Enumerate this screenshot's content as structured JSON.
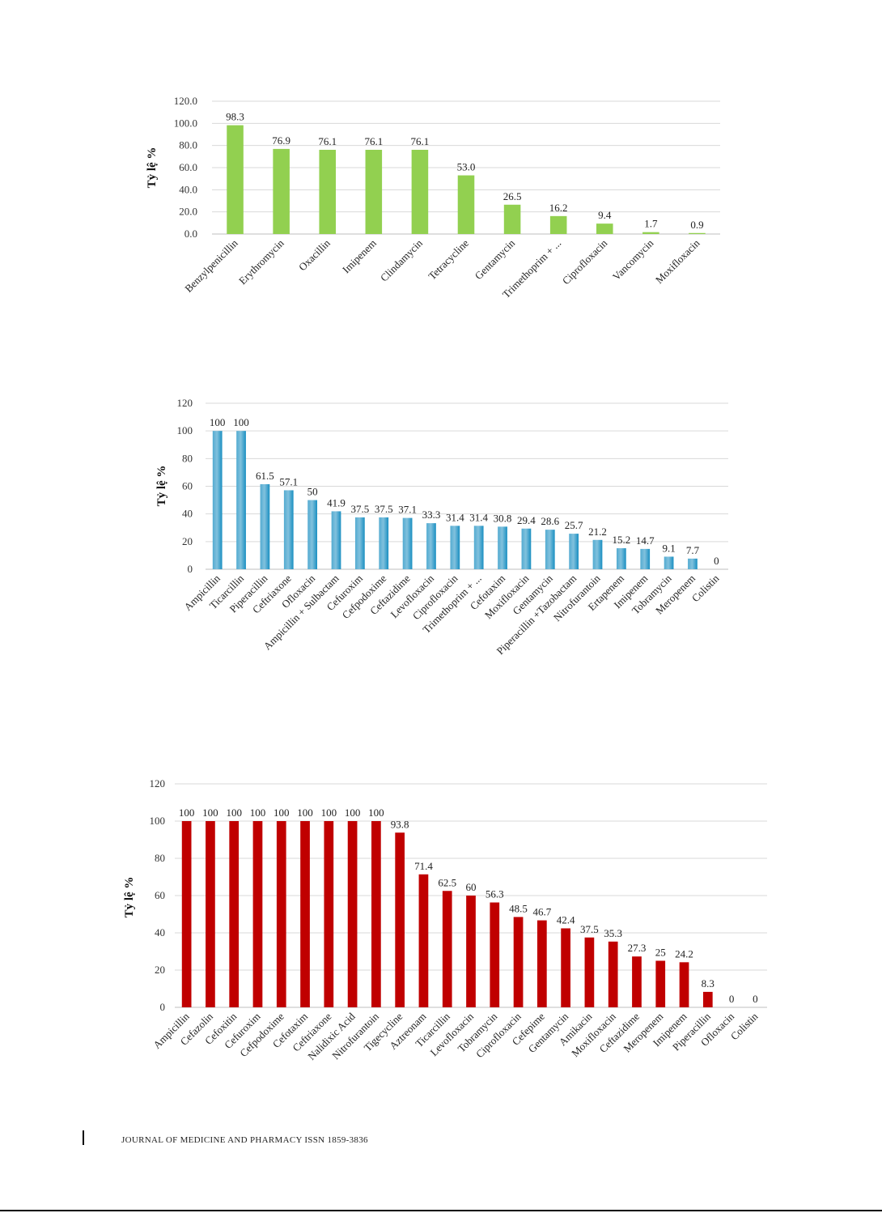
{
  "footer": {
    "text": "JOURNAL OF MEDICINE AND PHARMACY ISSN 1859-3836"
  },
  "chart_data": [
    {
      "type": "bar",
      "ylabel": "Tỷ lệ %",
      "ylim": [
        0,
        120
      ],
      "yticks": [
        "0.0",
        "20.0",
        "40.0",
        "60.0",
        "80.0",
        "100.0",
        "120.0"
      ],
      "color": "#92d050",
      "grid": true,
      "categories": [
        "Benzylpenicillin",
        "Erythromycin",
        "Oxacillin",
        "Imipenem",
        "Clindamycin",
        "Tetracycline",
        "Gentamycin",
        "Trimethoprim + ...",
        "Ciprofloxacin",
        "Vancomycin",
        "Moxifloxacin"
      ],
      "values": [
        98.3,
        76.9,
        76.1,
        76.1,
        76.1,
        53.0,
        26.5,
        16.2,
        9.4,
        1.7,
        0.9
      ],
      "value_labels": [
        "98.3",
        "76.9",
        "76.1",
        "76.1",
        "76.1",
        "53.0",
        "26.5",
        "16.2",
        "9.4",
        "1.7",
        "0.9"
      ]
    },
    {
      "type": "bar",
      "ylabel": "Tỷ lệ %",
      "ylim": [
        0,
        120
      ],
      "yticks": [
        "0",
        "20",
        "40",
        "60",
        "80",
        "100",
        "120"
      ],
      "color": "#1a8fc1",
      "grid": true,
      "categories": [
        "Ampicillin",
        "Ticarcillin",
        "Piperacillin",
        "Ceftriaxone",
        "Ofloxacin",
        "Ampicillin + Sulbactam",
        "Cefuroxim",
        "Cefpodoxime",
        "Ceftazidime",
        "Levofloxacin",
        "Ciprofloxacin",
        "Trimethoprim + ...",
        "Cefotaxim",
        "Moxifloxacin",
        "Gentamycin",
        "Piperacillin +Tazobactam",
        "Nitrofurantoin",
        "Ertapenem",
        "Imipenem",
        "Tobramycin",
        "Meropenem",
        "Colistin"
      ],
      "values": [
        100,
        100,
        61.5,
        57.1,
        50,
        41.9,
        37.5,
        37.5,
        37.1,
        33.3,
        31.4,
        31.4,
        30.8,
        29.4,
        28.6,
        25.7,
        21.2,
        15.2,
        14.7,
        9.1,
        7.7,
        0
      ],
      "value_labels": [
        "100",
        "100",
        "61.5",
        "57.1",
        "50",
        "41.9",
        "37.5",
        "37.5",
        "37.1",
        "33.3",
        "31.4",
        "31.4",
        "30.8",
        "29.4",
        "28.6",
        "25.7",
        "21.2",
        "15.2",
        "14.7",
        "9.1",
        "7.7",
        "0"
      ]
    },
    {
      "type": "bar",
      "ylabel": "Tỷ lệ %",
      "ylim": [
        0,
        120
      ],
      "yticks": [
        "0",
        "20",
        "40",
        "60",
        "80",
        "100",
        "120"
      ],
      "color": "#c00000",
      "grid": true,
      "categories": [
        "Ampicillin",
        "Cefazolin",
        "Cefoxitin",
        "Cefuroxim",
        "Cefpodoxime",
        "Cefotaxim",
        "Ceftriaxone",
        "Nalidixic Acid",
        "Nitrofurantoin",
        "Tigecycline",
        "Aztreonam",
        "Ticarcillin",
        "Levofloxacin",
        "Tobramycin",
        "Ciprofloxacin",
        "Cefepime",
        "Gentamycin",
        "Amikacin",
        "Moxifloxacin",
        "Ceftazidime",
        "Meropenem",
        "Imipenem",
        "Piperacillin",
        "Ofloxacin",
        "Colistin"
      ],
      "values": [
        100,
        100,
        100,
        100,
        100,
        100,
        100,
        100,
        100,
        93.8,
        71.4,
        62.5,
        60,
        56.3,
        48.5,
        46.7,
        42.4,
        37.5,
        35.3,
        27.3,
        25,
        24.2,
        8.3,
        0,
        0
      ],
      "value_labels": [
        "100",
        "100",
        "100",
        "100",
        "100",
        "100",
        "100",
        "100",
        "100",
        "93.8",
        "71.4",
        "62.5",
        "60",
        "56.3",
        "48.5",
        "46.7",
        "42.4",
        "37.5",
        "35.3",
        "27.3",
        "25",
        "24.2",
        "8.3",
        "0",
        "0"
      ]
    }
  ]
}
